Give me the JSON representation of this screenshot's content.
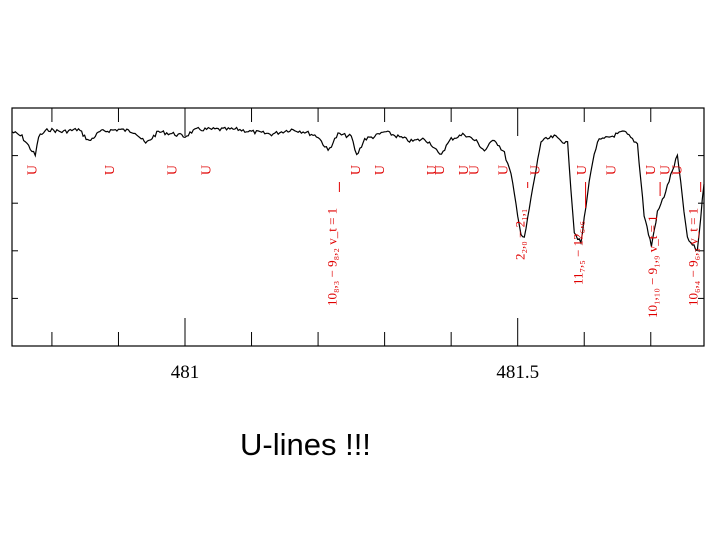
{
  "caption": "U-lines !!!",
  "colors": {
    "frame": "#000000",
    "spectrum": "#000000",
    "annotation": "#e00000"
  },
  "chart_data": {
    "type": "line",
    "title": "",
    "xlabel": "",
    "ylabel": "",
    "xlim": [
      480.74,
      481.78
    ],
    "ylim": [
      0.0,
      1.0
    ],
    "x_ticks": [
      481.0,
      481.5
    ],
    "x_tick_labels": [
      "481",
      "481.5"
    ],
    "grid": false,
    "series": [
      {
        "x": [
          480.74,
          480.755,
          480.775,
          480.78,
          480.795,
          480.815,
          480.84,
          480.856,
          480.872,
          480.9,
          480.925,
          480.941,
          480.96,
          480.985,
          481.0,
          481.01,
          481.02,
          481.05,
          481.08,
          481.1,
          481.13,
          481.16,
          481.18,
          481.2,
          481.215,
          481.23,
          481.25,
          481.258,
          481.27,
          481.285,
          481.3,
          481.32,
          481.34,
          481.36,
          481.37,
          481.383,
          481.4,
          481.42,
          481.438,
          481.45,
          481.465,
          481.48,
          481.49,
          481.505,
          481.51,
          481.52,
          481.535,
          481.555,
          481.575,
          481.585,
          481.595,
          481.61,
          481.62,
          481.64,
          481.66,
          481.68,
          481.69,
          481.701,
          481.71,
          481.72,
          481.74,
          481.755,
          481.77,
          481.78
        ],
        "y": [
          0.9,
          0.88,
          0.8,
          0.88,
          0.91,
          0.9,
          0.91,
          0.86,
          0.9,
          0.91,
          0.9,
          0.85,
          0.9,
          0.89,
          0.88,
          0.9,
          0.91,
          0.91,
          0.91,
          0.9,
          0.89,
          0.91,
          0.9,
          0.88,
          0.82,
          0.89,
          0.88,
          0.8,
          0.87,
          0.88,
          0.9,
          0.88,
          0.86,
          0.87,
          0.85,
          0.8,
          0.87,
          0.89,
          0.86,
          0.82,
          0.87,
          0.81,
          0.72,
          0.47,
          0.45,
          0.62,
          0.86,
          0.88,
          0.85,
          0.48,
          0.43,
          0.74,
          0.86,
          0.88,
          0.9,
          0.85,
          0.55,
          0.42,
          0.56,
          0.63,
          0.8,
          0.45,
          0.4,
          0.68
        ]
      }
    ],
    "annotations": {
      "u_marks": [
        {
          "text": "U",
          "x": 480.771
        },
        {
          "text": "U",
          "x": 480.887
        },
        {
          "text": "U",
          "x": 480.981
        },
        {
          "text": "U",
          "x": 481.032
        },
        {
          "text": "U",
          "x": 481.257
        },
        {
          "text": "U",
          "x": 481.293
        },
        {
          "text": "U",
          "x": 481.371
        },
        {
          "text": "U",
          "x": 481.383
        },
        {
          "text": "U",
          "x": 481.419
        },
        {
          "text": "U",
          "x": 481.435
        },
        {
          "text": "U",
          "x": 481.479
        },
        {
          "text": "U",
          "x": 481.527
        },
        {
          "text": "U",
          "x": 481.597
        },
        {
          "text": "U",
          "x": 481.641
        },
        {
          "text": "U",
          "x": 481.7
        },
        {
          "text": "U",
          "x": 481.722
        },
        {
          "text": "U",
          "x": 481.74
        }
      ],
      "assignments": [
        {
          "text": "10₈,₃ − 9₈,₂ v_t = 1",
          "x": 481.22
        },
        {
          "text": "2₂,₀ − 2₁,₁",
          "x": 481.503
        },
        {
          "text": "11₇,₅ − 12₆,₆",
          "x": 481.59
        },
        {
          "text": "10₁,₁₀ − 9₁,₉ v_t = 1",
          "x": 481.702
        },
        {
          "text": "10₆,₄ − 9₆,₃ v_t = 1",
          "x": 481.763
        }
      ]
    }
  }
}
